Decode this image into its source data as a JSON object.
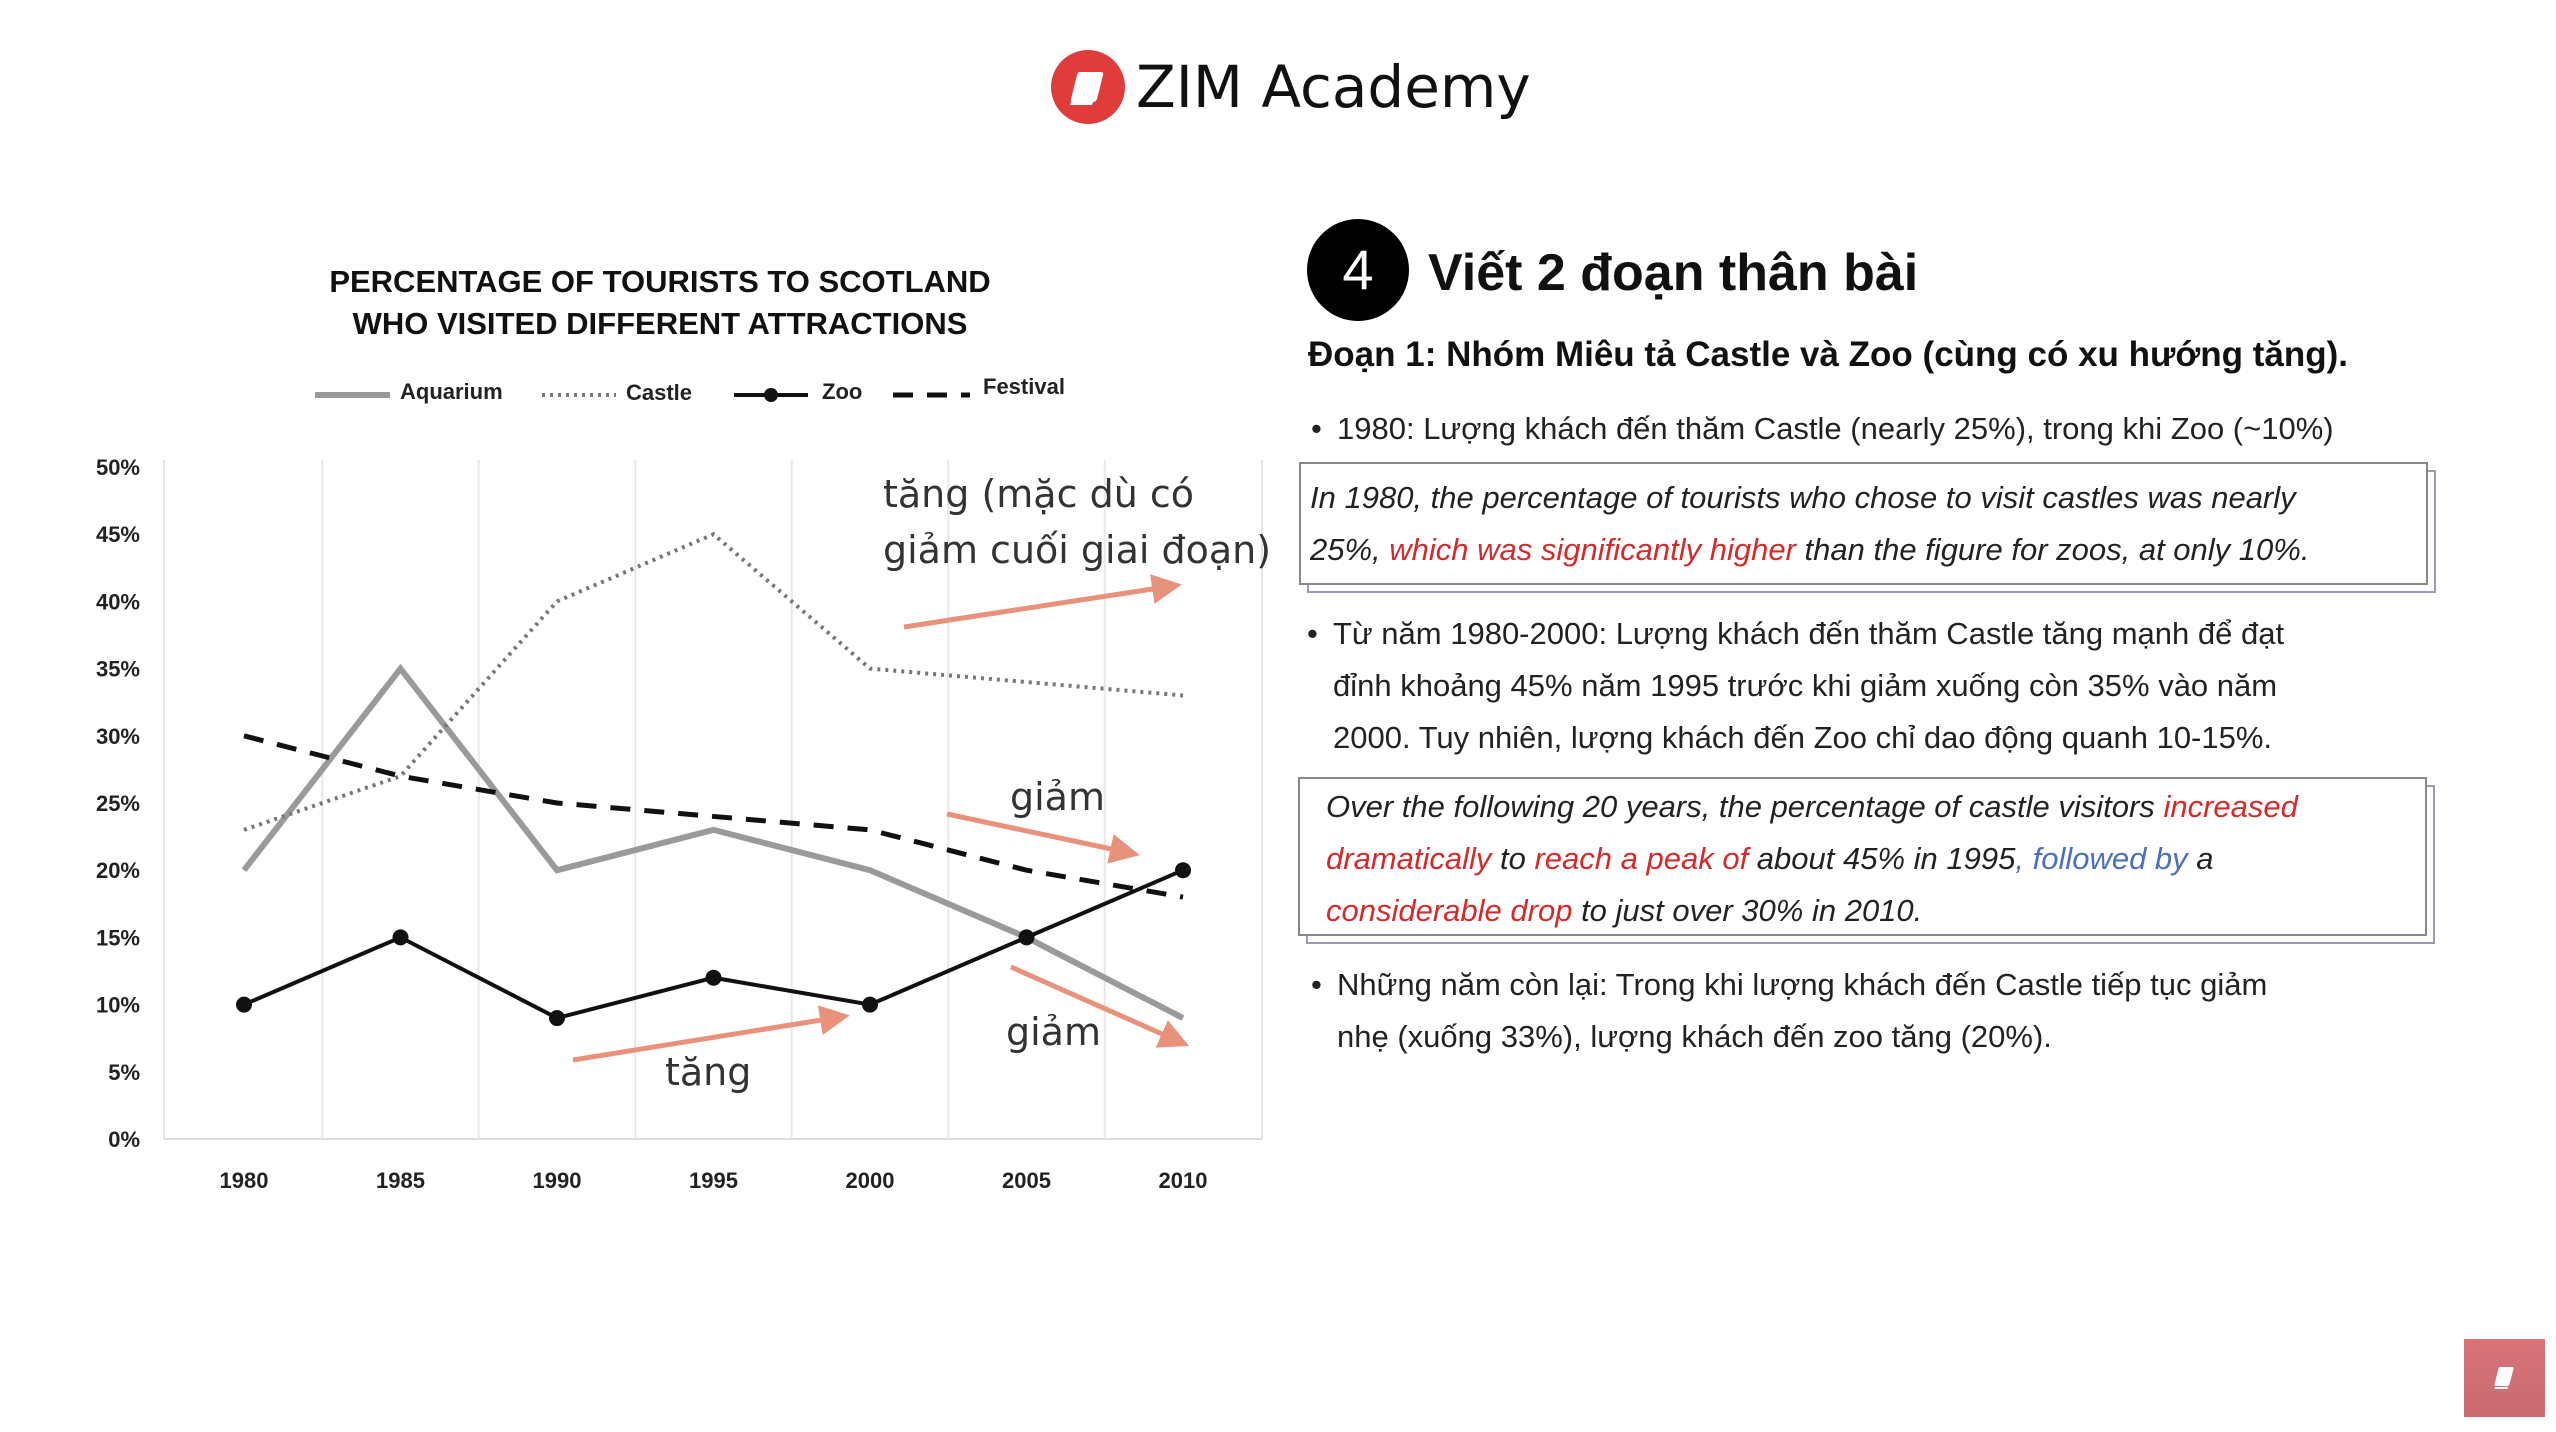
{
  "header": {
    "brand": "ZIM Academy",
    "brand_color": "#e03c3c",
    "logo_icon": "book-icon"
  },
  "chart": {
    "title_lines": [
      "PERCENTAGE OF TOURISTS TO  SCOTLAND",
      "WHO VISITED DIFFERENT ATTRACTIONS"
    ],
    "annotations": {
      "castle": [
        "tăng (mặc dù có",
        "giảm cuối giai đoạn)"
      ],
      "festival": "giảm",
      "aquarium": "giảm",
      "zoo": "tăng",
      "arrow_color": "#e8927c"
    }
  },
  "chart_data": {
    "type": "line",
    "title": "PERCENTAGE OF TOURISTS TO  SCOTLAND WHO VISITED DIFFERENT ATTRACTIONS",
    "categories": [
      "1980",
      "1985",
      "1990",
      "1995",
      "2000",
      "2005",
      "2010"
    ],
    "yticks": [
      "0%",
      "5%",
      "10%",
      "15%",
      "20%",
      "25%",
      "30%",
      "35%",
      "40%",
      "45%",
      "50%"
    ],
    "ylim": [
      0,
      50
    ],
    "legend_position": "top",
    "grid": "vertical",
    "series": [
      {
        "name": "Aquarium",
        "style": "solid-gray",
        "color": "#999999",
        "values": [
          20,
          35,
          20,
          23,
          20,
          15,
          9
        ]
      },
      {
        "name": "Castle",
        "style": "dotted",
        "color": "#777777",
        "values": [
          23,
          27,
          40,
          45,
          35,
          34,
          33
        ]
      },
      {
        "name": "Zoo",
        "style": "solid-markers",
        "color": "#111111",
        "values": [
          10,
          15,
          9,
          12,
          10,
          15,
          20
        ]
      },
      {
        "name": "Festival",
        "style": "dashed",
        "color": "#111111",
        "values": [
          30,
          27,
          25,
          24,
          23,
          20,
          18
        ]
      }
    ]
  },
  "lesson": {
    "step_number": "4",
    "step_title": "Viết 2 đoạn thân bài",
    "paragraph_title": "Đoạn 1: Nhóm Miêu tả Castle và Zoo (cùng có xu hướng tăng).",
    "bullet1": "1980: Lượng khách đến thăm Castle (nearly 25%), trong khi Zoo (~10%)",
    "box1": {
      "l1": "In 1980, the percentage of tourists who chose to visit castles was nearly",
      "l2a": "25%, ",
      "l2b": "which was significantly higher",
      "l2c": " than the figure for zoos, at only 10%."
    },
    "bullet2": [
      "Từ năm 1980-2000: Lượng khách đến thăm Castle tăng mạnh để đạt",
      "đỉnh khoảng 45% năm 1995 trước khi giảm xuống còn 35% vào năm",
      "2000. Tuy nhiên, lượng khách đến Zoo chỉ dao động quanh 10-15%."
    ],
    "box2": {
      "l1a": "Over the following 20 years, the percentage of castle visitors ",
      "l1b": "increased",
      "l2a": "dramatically",
      "l2b": " to ",
      "l2c": "reach a peak of",
      "l2d": " about 45% in 1995",
      "l2e": ", followed by",
      "l2f": " a",
      "l3a": "considerable drop",
      "l3b": " to just over 30% in 2010."
    },
    "bullet3": [
      "Những năm còn lại: Trong khi lượng khách đến Castle tiếp tục giảm",
      "nhẹ (xuống 33%), lượng khách đến zoo tăng (20%)."
    ],
    "highlight_red": "#d42a2a",
    "highlight_blue": "#4a6fc0",
    "bullet_char": "•"
  },
  "corner_button": {
    "icon": "book-icon",
    "color": "#d0706f"
  }
}
